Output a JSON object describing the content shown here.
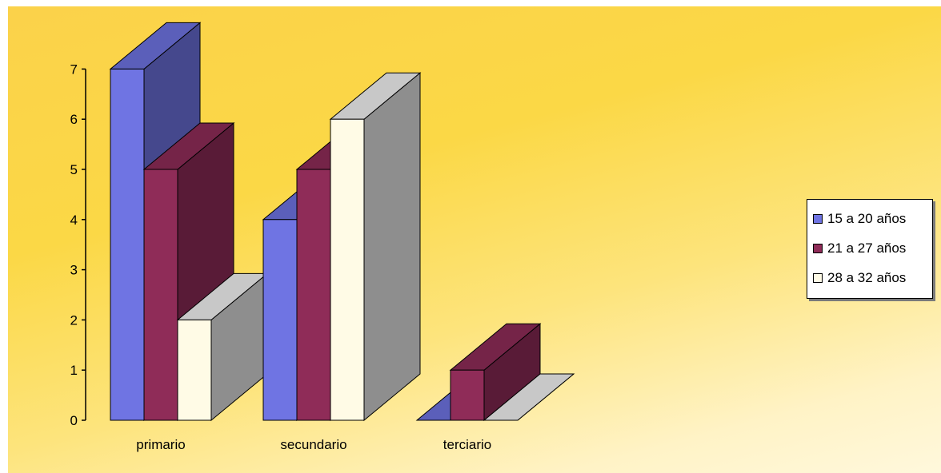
{
  "chart_data": {
    "type": "bar",
    "categories": [
      "primario",
      "secundario",
      "terciario"
    ],
    "series": [
      {
        "name": "15 a 20 años",
        "values": [
          7,
          4,
          0
        ],
        "color": "#6f74e3"
      },
      {
        "name": "21 a 27 años",
        "values": [
          5,
          5,
          1
        ],
        "color": "#8f2c58"
      },
      {
        "name": "28 a 32 años",
        "values": [
          2,
          6,
          0
        ],
        "color": "#fffbe6"
      }
    ],
    "ylim": [
      0,
      7
    ],
    "yticks": [
      0,
      1,
      2,
      3,
      4,
      5,
      6,
      7
    ],
    "title": "",
    "xlabel": "",
    "ylabel": "",
    "legend_position": "right",
    "grid": false,
    "style": "3d-column"
  }
}
